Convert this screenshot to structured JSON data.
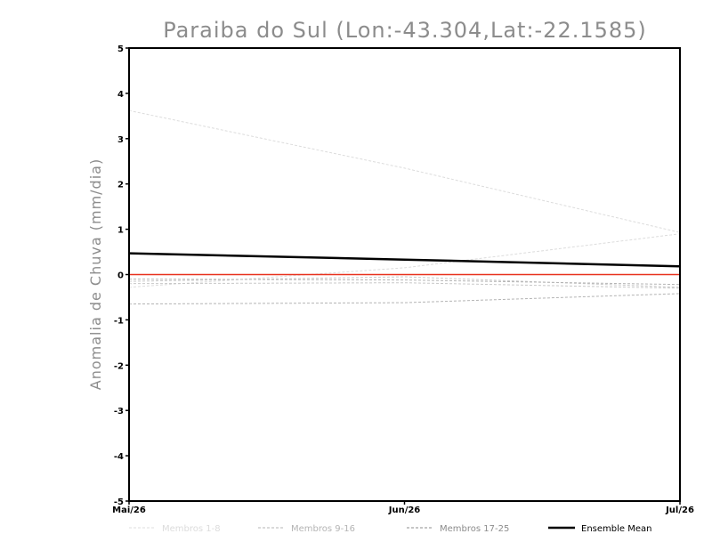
{
  "chart_data": {
    "type": "line",
    "title": "Paraiba do Sul (Lon:-43.304,Lat:-22.1585)",
    "ylabel": "Anomalia de Chuva (mm/dia)",
    "xlabel": "",
    "categories": [
      "Mai/26",
      "Jun/26",
      "Jul/26"
    ],
    "ylim": [
      -5,
      5
    ],
    "yticks": [
      "-5",
      "-4",
      "-3",
      "-2",
      "-1",
      "0",
      "1",
      "2",
      "3",
      "4",
      "5"
    ],
    "grid": false,
    "zero_line_color": "#e8321f",
    "members": [
      {
        "group": "Membros 1-8",
        "color": "#dcdcdc",
        "values": [
          3.62,
          2.35,
          0.93
        ]
      },
      {
        "group": "Membros 1-8",
        "color": "#dcdcdc",
        "values": [
          -0.28,
          0.15,
          0.9
        ]
      },
      {
        "group": "Membros 9-16",
        "color": "#c8c8c8",
        "values": [
          -0.15,
          -0.05,
          -0.28
        ]
      },
      {
        "group": "Membros 9-16",
        "color": "#c8c8c8",
        "values": [
          -0.2,
          -0.18,
          -0.3
        ]
      },
      {
        "group": "Membros 17-25",
        "color": "#b4b4b4",
        "values": [
          -0.65,
          -0.62,
          -0.42
        ]
      },
      {
        "group": "Membros 17-25",
        "color": "#b4b4b4",
        "values": [
          -0.1,
          -0.12,
          -0.22
        ]
      }
    ],
    "series": [
      {
        "name": "Ensemble Mean",
        "color": "#000000",
        "values": [
          0.47,
          0.33,
          0.18
        ]
      }
    ],
    "legend": {
      "placement": "bottom",
      "entries": [
        {
          "label": "Membros 1-8",
          "color": "#dcdcdc",
          "style": "dashed"
        },
        {
          "label": "Membros 9-16",
          "color": "#b4b4b4",
          "style": "dashed"
        },
        {
          "label": "Membros 17-25",
          "color": "#8c8c8c",
          "style": "dashed"
        },
        {
          "label": "Ensemble Mean",
          "color": "#000000",
          "style": "solid"
        }
      ]
    }
  }
}
